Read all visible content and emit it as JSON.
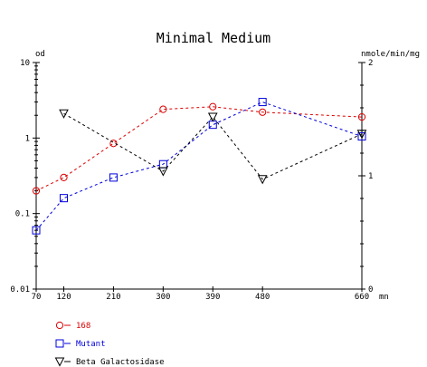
{
  "chart_data": {
    "type": "line",
    "title": "Minimal Medium",
    "x": [
      70,
      120,
      210,
      300,
      390,
      480,
      660
    ],
    "xtick_labels": [
      "70",
      "120",
      "210",
      "300",
      "390",
      "480",
      "660"
    ],
    "xunit": "mn",
    "left_axis": {
      "label": "od",
      "scale": "log",
      "range": [
        0.01,
        10
      ],
      "ticks": [
        0.01,
        0.1,
        1,
        10
      ],
      "tick_labels": [
        "0.01",
        "0.1",
        "1",
        "10"
      ]
    },
    "right_axis": {
      "label": "nmole/min/mg",
      "scale": "linear",
      "range": [
        0,
        2
      ],
      "ticks": [
        0,
        1,
        2
      ],
      "tick_labels": [
        "0",
        "1",
        "2"
      ]
    },
    "grid": false,
    "legend_position": "bottom-left",
    "series": [
      {
        "name": "168",
        "axis": "left",
        "color": "#dd0000",
        "marker": "circle",
        "x": [
          70,
          120,
          210,
          300,
          390,
          480,
          660
        ],
        "values": [
          0.2,
          0.3,
          0.85,
          2.4,
          2.6,
          2.2,
          1.9
        ]
      },
      {
        "name": "Mutant",
        "axis": "left",
        "color": "#0000dd",
        "marker": "square",
        "x": [
          70,
          120,
          210,
          300,
          390,
          480,
          660
        ],
        "values": [
          0.06,
          0.16,
          0.3,
          0.45,
          1.5,
          3.0,
          1.05
        ]
      },
      {
        "name": "Beta Galactosidase",
        "axis": "right",
        "color": "#000000",
        "marker": "triangle-down",
        "x": [
          120,
          300,
          390,
          480,
          660
        ],
        "values": [
          1.55,
          1.04,
          1.52,
          0.97,
          1.37
        ]
      }
    ]
  }
}
